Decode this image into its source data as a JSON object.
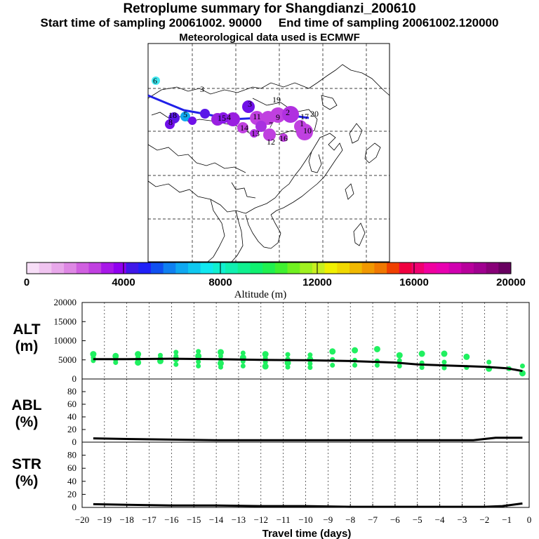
{
  "titles": {
    "line1": "Retroplume summary for Shangdianzi_200610",
    "line2": "Start time of sampling 20061002. 90000     End time of sampling 20061002.120000",
    "line3": "Meteorological data used is ECMWF"
  },
  "colorbar": {
    "label": "Altitude (m)",
    "ticks": [
      0,
      4000,
      8000,
      12000,
      16000,
      20000
    ],
    "colors": [
      "#f7def7",
      "#f0c4f0",
      "#e8a8ea",
      "#de88e4",
      "#d060e0",
      "#c040e0",
      "#a818e8",
      "#9000f0",
      "#4018e8",
      "#2020f8",
      "#1050f0",
      "#1080f0",
      "#10a8f0",
      "#10c8f0",
      "#10e8f0",
      "#10f0d0",
      "#10f0b0",
      "#10f090",
      "#10f070",
      "#20f050",
      "#40f030",
      "#70f020",
      "#a0f020",
      "#c8f020",
      "#f0f000",
      "#f0d800",
      "#f0b800",
      "#f09800",
      "#f07800",
      "#f04000",
      "#f00040",
      "#f00070",
      "#f000a0",
      "#e800b0",
      "#d000b0",
      "#b8009c",
      "#a00090",
      "#880078",
      "#680060"
    ]
  },
  "map": {
    "numbered_labels": [
      "1",
      "2",
      "3",
      "4",
      "5",
      "6",
      "7",
      "8",
      "9",
      "10",
      "11",
      "12",
      "13",
      "14",
      "15",
      "16",
      "17",
      "18",
      "19",
      "20"
    ]
  },
  "panels": {
    "alt": {
      "label": "ALT",
      "unit": "(m)"
    },
    "abl": {
      "label": "ABL",
      "unit": "(%)"
    },
    "str": {
      "label": "STR",
      "unit": "(%)"
    }
  },
  "xaxis": {
    "label": "Travel time (days)"
  },
  "chart_data": [
    {
      "type": "line",
      "panel": "ALT",
      "ylabel": "ALT (m)",
      "ylim": [
        0,
        20000
      ],
      "yticks": [
        0,
        5000,
        10000,
        15000,
        20000
      ],
      "xlabel": "Travel time (days)",
      "xlim": [
        -20,
        0
      ],
      "xticks": [
        -20,
        -19,
        -18,
        -17,
        -16,
        -15,
        -14,
        -13,
        -12,
        -11,
        -10,
        -9,
        -8,
        -7,
        -6,
        -5,
        -4,
        -3,
        -2,
        -1,
        0
      ],
      "mean_line": {
        "x": [
          -19.5,
          -18,
          -16,
          -14,
          -12,
          -10,
          -8,
          -7,
          -6,
          -5,
          -4,
          -3,
          -2,
          -1,
          -0.3
        ],
        "y": [
          5200,
          5200,
          5300,
          5200,
          5000,
          4900,
          4700,
          4500,
          4300,
          3800,
          3600,
          3400,
          3200,
          2800,
          2100
        ]
      },
      "points": {
        "x": [
          -19.5,
          -19.5,
          -19.5,
          -18.5,
          -18.5,
          -18.5,
          -17.5,
          -17.5,
          -17.5,
          -17.5,
          -16.5,
          -16.5,
          -16.5,
          -15.8,
          -15.8,
          -15.8,
          -15.8,
          -14.8,
          -14.8,
          -14.8,
          -14.8,
          -13.8,
          -13.8,
          -13.8,
          -13.8,
          -13.8,
          -12.8,
          -12.8,
          -12.8,
          -12.8,
          -11.8,
          -11.8,
          -11.8,
          -11.8,
          -10.8,
          -10.8,
          -10.8,
          -10.8,
          -9.8,
          -9.8,
          -9.8,
          -9.8,
          -8.8,
          -8.8,
          -8.8,
          -7.8,
          -7.8,
          -7.8,
          -6.8,
          -6.8,
          -6.8,
          -5.8,
          -5.8,
          -5.8,
          -4.8,
          -4.8,
          -4.8,
          -3.8,
          -3.8,
          -3.8,
          -2.8,
          -2.8,
          -1.8,
          -1.8,
          -0.9,
          -0.3,
          -0.3
        ],
        "y": [
          6500,
          5600,
          4800,
          6000,
          5000,
          4300,
          6500,
          5600,
          4800,
          4300,
          6200,
          5500,
          4700,
          7000,
          6000,
          5200,
          3800,
          7200,
          6000,
          4500,
          3400,
          7000,
          6000,
          5100,
          4100,
          3100,
          6800,
          5600,
          4600,
          3400,
          6500,
          5500,
          4400,
          3300,
          6400,
          5200,
          4200,
          3100,
          6300,
          5100,
          4000,
          3000,
          7200,
          5100,
          3600,
          7500,
          4900,
          3600,
          7800,
          4700,
          3600,
          6200,
          4800,
          3400,
          6600,
          4200,
          3000,
          6600,
          4400,
          2900,
          5800,
          3000,
          4400,
          2700,
          2700,
          3400,
          1500
        ]
      }
    },
    {
      "type": "line",
      "panel": "ABL",
      "ylabel": "ABL (%)",
      "ylim": [
        0,
        100
      ],
      "yticks": [
        0,
        20,
        40,
        60,
        80
      ],
      "x": [
        -19.5,
        -18,
        -16,
        -14,
        -12,
        -10,
        -8,
        -6,
        -4,
        -2.5,
        -1.5,
        -0.8,
        -0.3
      ],
      "y": [
        6,
        5,
        4,
        3,
        3,
        3,
        3,
        3,
        3,
        3,
        7,
        7,
        7
      ]
    },
    {
      "type": "line",
      "panel": "STR",
      "ylabel": "STR (%)",
      "ylim": [
        0,
        100
      ],
      "yticks": [
        0,
        20,
        40,
        60,
        80
      ],
      "x": [
        -19.5,
        -18,
        -16,
        -14,
        -12,
        -10,
        -8,
        -6,
        -4,
        -2,
        -1.2,
        -0.3
      ],
      "y": [
        5,
        4,
        3,
        3,
        2,
        2,
        1,
        1,
        1,
        1,
        2,
        6
      ]
    }
  ]
}
